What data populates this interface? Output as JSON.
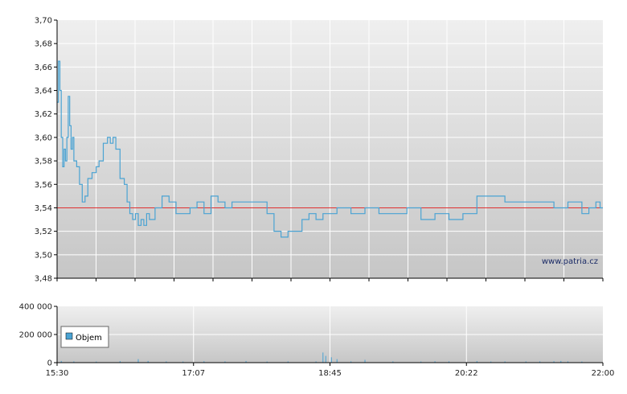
{
  "watermark": "www.patria.cz",
  "colors": {
    "price_line": "#4aa3d3",
    "reference_line": "#e03030",
    "volume_bars": "#4aa3d3",
    "grid": "#ffffff",
    "axis": "#000000",
    "plot_bg_top": "#efefef",
    "plot_bg_bottom": "#c6c6c6",
    "legend_swatch": "#4aa3d3"
  },
  "chart_data": [
    {
      "type": "line",
      "title": "",
      "xlabel": "",
      "ylabel": "",
      "ylim": [
        3.48,
        3.7
      ],
      "y_tick_labels": [
        "3,48",
        "3,50",
        "3,52",
        "3,54",
        "3,56",
        "3,58",
        "3,60",
        "3,62",
        "3,64",
        "3,66",
        "3,68",
        "3,70"
      ],
      "x_tick_labels": [
        "15:30",
        "17:07",
        "18:45",
        "20:22",
        "22:00"
      ],
      "x_range_minutes": [
        0,
        390
      ],
      "reference_line": 3.54,
      "grid": true,
      "series": [
        {
          "x": [
            0,
            1,
            2,
            3,
            4,
            5,
            6,
            7,
            8,
            9,
            10,
            11,
            12,
            14,
            16,
            18,
            20,
            22,
            25,
            28,
            30,
            33,
            36,
            38,
            40,
            42,
            45,
            48,
            50,
            52,
            54,
            56,
            58,
            60,
            62,
            64,
            66,
            70,
            75,
            80,
            85,
            90,
            95,
            100,
            105,
            110,
            115,
            120,
            125,
            130,
            135,
            140,
            145,
            150,
            155,
            160,
            165,
            170,
            175,
            180,
            185,
            190,
            195,
            200,
            210,
            220,
            230,
            240,
            250,
            260,
            270,
            280,
            290,
            300,
            310,
            320,
            330,
            340,
            350,
            355,
            360,
            365,
            370,
            375,
            380,
            385,
            388,
            390
          ],
          "y": [
            3.63,
            3.665,
            3.64,
            3.6,
            3.575,
            3.59,
            3.58,
            3.6,
            3.635,
            3.61,
            3.59,
            3.6,
            3.58,
            3.575,
            3.56,
            3.545,
            3.55,
            3.565,
            3.57,
            3.575,
            3.58,
            3.595,
            3.6,
            3.595,
            3.6,
            3.59,
            3.565,
            3.56,
            3.545,
            3.535,
            3.53,
            3.535,
            3.525,
            3.53,
            3.525,
            3.535,
            3.53,
            3.54,
            3.55,
            3.545,
            3.535,
            3.535,
            3.54,
            3.545,
            3.535,
            3.55,
            3.545,
            3.54,
            3.545,
            3.545,
            3.545,
            3.545,
            3.545,
            3.535,
            3.52,
            3.515,
            3.52,
            3.52,
            3.53,
            3.535,
            3.53,
            3.535,
            3.535,
            3.54,
            3.535,
            3.54,
            3.535,
            3.535,
            3.54,
            3.53,
            3.535,
            3.53,
            3.535,
            3.55,
            3.55,
            3.545,
            3.545,
            3.545,
            3.545,
            3.54,
            3.54,
            3.545,
            3.545,
            3.535,
            3.54,
            3.545,
            3.54,
            3.54
          ]
        }
      ]
    },
    {
      "type": "bar",
      "title": "",
      "xlabel": "",
      "ylabel": "",
      "ylim": [
        0,
        400000
      ],
      "y_tick_labels": [
        "0",
        "200 000",
        "400 000"
      ],
      "x_tick_labels": [
        "15:30",
        "17:07",
        "18:45",
        "20:22",
        "22:00"
      ],
      "legend": "Objem",
      "legend_position": "left",
      "grid": true,
      "series": [
        {
          "name": "Objem",
          "x": [
            3,
            12,
            28,
            45,
            58,
            65,
            78,
            90,
            105,
            120,
            135,
            150,
            165,
            185,
            190,
            192,
            196,
            200,
            210,
            220,
            240,
            260,
            270,
            280,
            300,
            310,
            320,
            335,
            345,
            355,
            360,
            365,
            375
          ],
          "values": [
            12000,
            9000,
            8000,
            11000,
            25000,
            12000,
            9000,
            8000,
            10000,
            9000,
            12000,
            8000,
            9000,
            9000,
            72000,
            48000,
            38000,
            25000,
            9000,
            20000,
            9000,
            8000,
            10000,
            9000,
            11000,
            8000,
            9000,
            9000,
            9000,
            10000,
            12000,
            9000,
            8000
          ]
        }
      ]
    }
  ]
}
